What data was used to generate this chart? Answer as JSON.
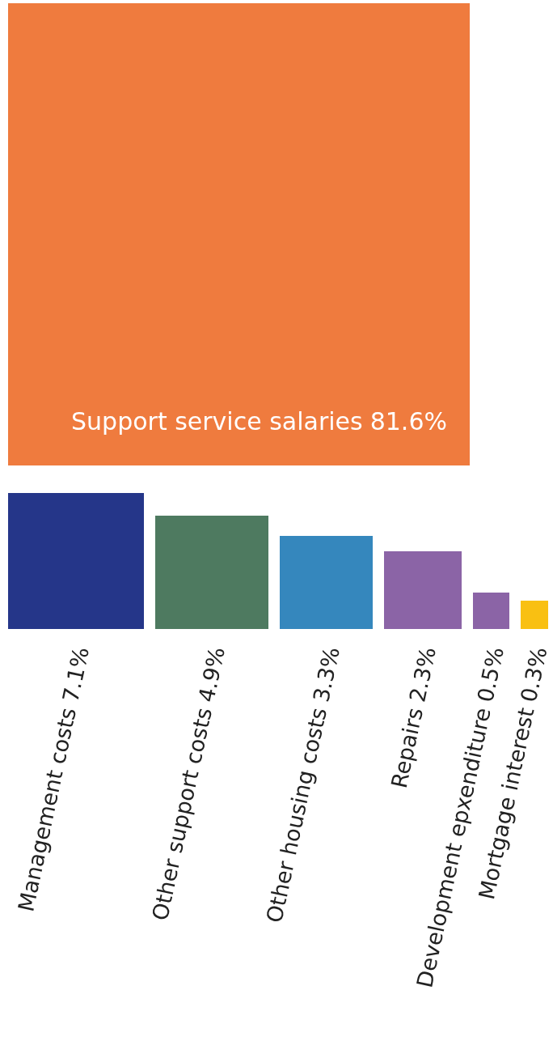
{
  "chart_data": {
    "type": "other",
    "categories": [
      "Support service salaries",
      "Management costs",
      "Other support costs",
      "Other housing costs",
      "Repairs",
      "Development epxenditure",
      "Mortgage interest"
    ],
    "values": [
      81.6,
      7.1,
      4.9,
      3.3,
      2.3,
      0.5,
      0.3
    ],
    "value_labels": [
      "81.6%",
      "7.1%",
      "4.9%",
      "3.3%",
      "2.3%",
      "0.5%",
      "0.3%"
    ],
    "colors": [
      "#ef7b3e",
      "#253689",
      "#4e7a60",
      "#3587bd",
      "#8b64a6",
      "#8b64a6",
      "#f9c012"
    ]
  }
}
